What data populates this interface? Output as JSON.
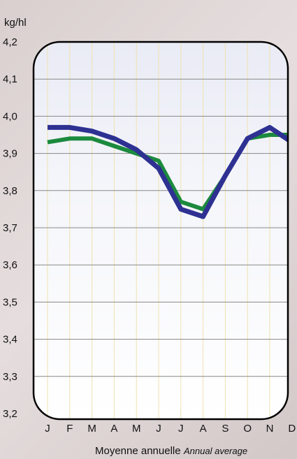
{
  "chart_data": {
    "type": "line",
    "ylabel": "kg/hl",
    "xlabel_main": "Moyenne annuelle",
    "xlabel_sub": "Annual average",
    "categories": [
      "J",
      "F",
      "M",
      "A",
      "M",
      "J",
      "J",
      "A",
      "S",
      "O",
      "N",
      "D"
    ],
    "ylim": [
      3.2,
      4.2
    ],
    "yticks": [
      "4,2",
      "4,1",
      "4,0",
      "3,9",
      "3,8",
      "3,7",
      "3,6",
      "3,5",
      "3,4",
      "3,3",
      "3,2"
    ],
    "grid": true,
    "series": [
      {
        "color": "#1c8a3e",
        "values": [
          3.93,
          3.94,
          3.94,
          3.92,
          3.9,
          3.88,
          3.77,
          3.75,
          3.84,
          3.94,
          3.95,
          3.95
        ]
      },
      {
        "color": "#2e3192",
        "values": [
          3.97,
          3.97,
          3.96,
          3.94,
          3.91,
          3.86,
          3.75,
          3.73,
          3.84,
          3.94,
          3.97,
          3.93
        ]
      }
    ]
  }
}
